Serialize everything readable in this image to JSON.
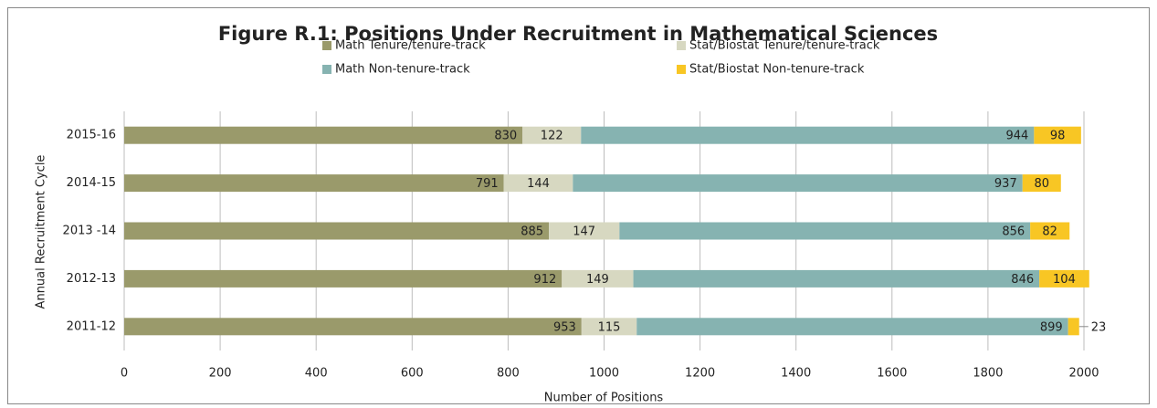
{
  "chart_data": {
    "type": "stacked-barh",
    "title": "Figure R.1: Positions Under Recruitment in Mathematical Sciences",
    "x_label": "Number of Positions",
    "y_label": "Annual Recruitment Cycle",
    "categories": [
      "2015-16",
      "2014-15",
      "2013 -14",
      "2012-13",
      "2011-12"
    ],
    "series": [
      {
        "name": "Math Tenure/tenure-track",
        "color": "#9a9a6b",
        "values": [
          830,
          791,
          885,
          912,
          953
        ]
      },
      {
        "name": "Stat/Biostat Tenure/tenure-track",
        "color": "#d7d8c1",
        "values": [
          122,
          144,
          147,
          149,
          115
        ]
      },
      {
        "name": "Math Non-tenure-track",
        "color": "#86b3b1",
        "values": [
          944,
          937,
          856,
          846,
          899
        ]
      },
      {
        "name": "Stat/Biostat Non-tenure-track",
        "color": "#f8c624",
        "values": [
          98,
          80,
          82,
          104,
          23
        ]
      }
    ],
    "xlim": [
      0,
      2000
    ],
    "xticks": [
      0,
      200,
      400,
      600,
      800,
      1000,
      1200,
      1400,
      1600,
      1800,
      2000
    ],
    "grid": true
  }
}
